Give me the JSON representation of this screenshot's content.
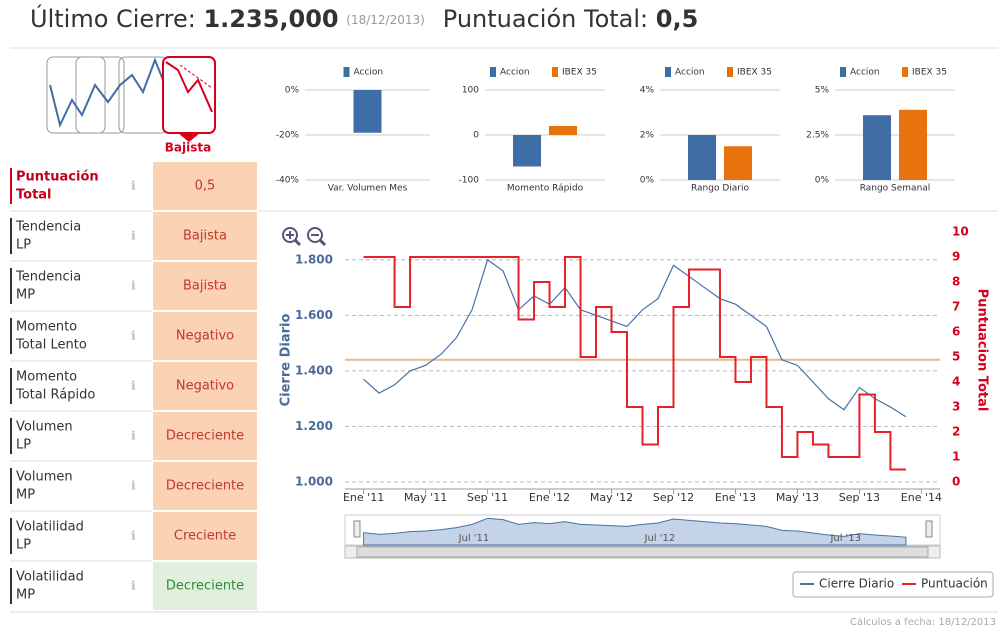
{
  "header": {
    "label": "Último Cierre:",
    "price": "1.235,000",
    "date": "(18/12/2013)",
    "score_label": "Puntuación Total:",
    "score": "0,5"
  },
  "signal": {
    "label": "Bajista"
  },
  "table": {
    "rows": [
      {
        "label": [
          "Puntuación",
          "Total"
        ],
        "value": "0,5",
        "tone": "orange"
      },
      {
        "label": [
          "Tendencia",
          "LP"
        ],
        "value": "Bajista",
        "tone": "orange"
      },
      {
        "label": [
          "Tendencia",
          "MP"
        ],
        "value": "Bajista",
        "tone": "orange"
      },
      {
        "label": [
          "Momento",
          "Total Lento"
        ],
        "value": "Negativo",
        "tone": "orange"
      },
      {
        "label": [
          "Momento",
          "Total Rápido"
        ],
        "value": "Negativo",
        "tone": "orange"
      },
      {
        "label": [
          "Volumen",
          "LP"
        ],
        "value": "Decreciente",
        "tone": "orange"
      },
      {
        "label": [
          "Volumen",
          "MP"
        ],
        "value": "Decreciente",
        "tone": "orange"
      },
      {
        "label": [
          "Volatilidad",
          "LP"
        ],
        "value": "Creciente",
        "tone": "orange"
      },
      {
        "label": [
          "Volatilidad",
          "MP"
        ],
        "value": "Decreciente",
        "tone": "green"
      }
    ]
  },
  "chart_data": [
    {
      "type": "bar",
      "categories": [
        "Var. Volumen Mes"
      ],
      "series": [
        {
          "name": "Accion",
          "color": "#3f6ea6",
          "values": [
            -19
          ]
        }
      ],
      "ylim": [
        -40,
        0
      ],
      "yticks": [
        {
          "value": 0,
          "label": "0%"
        },
        {
          "value": -20,
          "label": "-20%"
        },
        {
          "value": -40,
          "label": "-40%"
        }
      ]
    },
    {
      "type": "bar",
      "categories": [
        "Momento Rápido"
      ],
      "series": [
        {
          "name": "Accion",
          "color": "#3f6ea6",
          "values": [
            -70
          ]
        },
        {
          "name": "IBEX 35",
          "color": "#e8730e",
          "values": [
            20
          ]
        }
      ],
      "ylim": [
        -100,
        100
      ],
      "yticks": [
        100,
        0,
        -100
      ]
    },
    {
      "type": "bar",
      "categories": [
        "Rango Diario"
      ],
      "series": [
        {
          "name": "Accion",
          "color": "#3f6ea6",
          "values": [
            2.0
          ]
        },
        {
          "name": "IBEX 35",
          "color": "#e8730e",
          "values": [
            1.5
          ]
        }
      ],
      "ylim": [
        0,
        4
      ],
      "yticks": [
        {
          "value": 0,
          "label": "0%"
        },
        {
          "value": 2,
          "label": "2%"
        },
        {
          "value": 4,
          "label": "4%"
        }
      ]
    },
    {
      "type": "bar",
      "categories": [
        "Rango Semanal"
      ],
      "series": [
        {
          "name": "Accion",
          "color": "#3f6ea6",
          "values": [
            3.6
          ]
        },
        {
          "name": "IBEX 35",
          "color": "#e8730e",
          "values": [
            3.9
          ]
        }
      ],
      "ylim": [
        0,
        5
      ],
      "yticks": [
        {
          "value": 0,
          "label": "0%"
        },
        {
          "value": 2.5,
          "label": "2.5%"
        },
        {
          "value": 5,
          "label": "5%"
        }
      ]
    },
    {
      "type": "line",
      "y_label": "Cierre Diario",
      "y2_label": "Puntuacion Total",
      "x": [
        0,
        1,
        2,
        3,
        4,
        5,
        6,
        7,
        8,
        9,
        10,
        11,
        12,
        13,
        14,
        15,
        16,
        17,
        18,
        19,
        20,
        21,
        22,
        23,
        24,
        25,
        26,
        27,
        28,
        29,
        30,
        31,
        32,
        33,
        34,
        35
      ],
      "series": [
        {
          "name": "Cierre Diario",
          "color": "#4572a7",
          "values": [
            1.37,
            1.32,
            1.35,
            1.4,
            1.42,
            1.46,
            1.52,
            1.62,
            1.8,
            1.76,
            1.62,
            1.67,
            1.64,
            1.7,
            1.62,
            1.6,
            1.58,
            1.56,
            1.62,
            1.66,
            1.78,
            1.74,
            1.7,
            1.66,
            1.64,
            1.6,
            1.56,
            1.44,
            1.42,
            1.36,
            1.3,
            1.26,
            1.34,
            1.3,
            1.27,
            1.235
          ]
        },
        {
          "name": "Puntuación",
          "color": "#e8202a",
          "axis": "y2",
          "values": [
            9,
            9,
            7,
            9,
            9,
            9,
            9,
            9,
            9,
            9,
            6.5,
            8,
            7,
            9,
            5,
            7,
            6,
            3,
            1.5,
            3,
            7,
            8.5,
            8.5,
            5,
            4,
            5,
            3,
            1,
            2,
            1.5,
            1,
            1,
            3.5,
            2,
            0.5,
            0.5
          ]
        }
      ],
      "reference_line": 1.44,
      "xlim": [
        -1.2,
        37.2
      ],
      "xticks": [
        {
          "value": 0,
          "label": "Ene '11"
        },
        {
          "value": 4,
          "label": "May '11"
        },
        {
          "value": 8,
          "label": "Sep '11"
        },
        {
          "value": 12,
          "label": "Ene '12"
        },
        {
          "value": 16,
          "label": "May '12"
        },
        {
          "value": 20,
          "label": "Sep '12"
        },
        {
          "value": 24,
          "label": "Ene '13"
        },
        {
          "value": 28,
          "label": "May '13"
        },
        {
          "value": 32,
          "label": "Sep '13"
        },
        {
          "value": 36,
          "label": "Ene '14"
        }
      ],
      "ylim": [
        1.0,
        1.9
      ],
      "yticks": [
        {
          "value": 1.0,
          "label": "1.000"
        },
        {
          "value": 1.2,
          "label": "1.200"
        },
        {
          "value": 1.4,
          "label": "1.400"
        },
        {
          "value": 1.6,
          "label": "1.600"
        },
        {
          "value": 1.8,
          "label": "1.800"
        }
      ],
      "y2lim": [
        0,
        10
      ],
      "y2ticks": [
        0,
        1,
        2,
        3,
        4,
        5,
        6,
        7,
        8,
        9,
        10
      ],
      "navigator_labels": [
        "Jul '11",
        "Jul '12",
        "Jul '13"
      ],
      "grid": true,
      "legend": "bottom-right"
    }
  ],
  "footer": "Cálculos a fecha: 18/12/2013"
}
